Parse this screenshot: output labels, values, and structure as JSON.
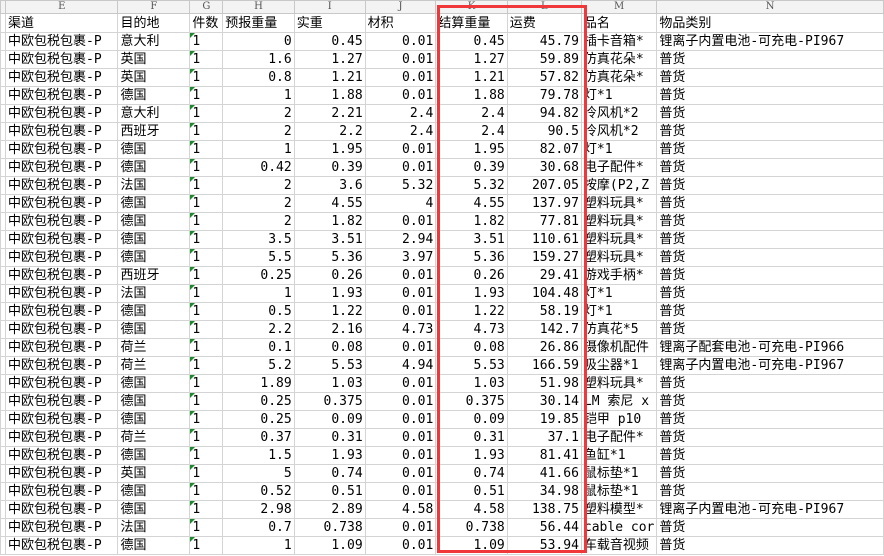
{
  "column_letters": [
    "",
    "E",
    "F",
    "G",
    "H",
    "I",
    "J",
    "K",
    "L",
    "M",
    "N"
  ],
  "headers": [
    "",
    "渠道",
    "目的地",
    "件数",
    "预报重量",
    "实重",
    "材积",
    "结算重量",
    "运费",
    "品名",
    "物品类别"
  ],
  "highlight_color": "#f0383b",
  "rows": [
    [
      "中欧包税包裹-P",
      "意大利",
      "1",
      "0",
      "0.45",
      "0.01",
      "0.45",
      "45.79",
      "插卡音箱*",
      "锂离子内置电池-可充电-PI967"
    ],
    [
      "中欧包税包裹-P",
      "英国",
      "1",
      "1.6",
      "1.27",
      "0.01",
      "1.27",
      "59.89",
      "仿真花朵*",
      "普货"
    ],
    [
      "中欧包税包裹-P",
      "英国",
      "1",
      "0.8",
      "1.21",
      "0.01",
      "1.21",
      "57.82",
      "仿真花朵*",
      "普货"
    ],
    [
      "中欧包税包裹-P",
      "德国",
      "1",
      "1",
      "1.88",
      "0.01",
      "1.88",
      "79.78",
      "灯*1",
      "普货"
    ],
    [
      "中欧包税包裹-P",
      "意大利",
      "1",
      "2",
      "2.21",
      "2.4",
      "2.4",
      "94.82",
      "冷风机*2",
      "普货"
    ],
    [
      "中欧包税包裹-P",
      "西班牙",
      "1",
      "2",
      "2.2",
      "2.4",
      "2.4",
      "90.5",
      "冷风机*2",
      "普货"
    ],
    [
      "中欧包税包裹-P",
      "德国",
      "1",
      "1",
      "1.95",
      "0.01",
      "1.95",
      "82.07",
      "灯*1",
      "普货"
    ],
    [
      "中欧包税包裹-P",
      "德国",
      "1",
      "0.42",
      "0.39",
      "0.01",
      "0.39",
      "30.68",
      "电子配件*",
      "普货"
    ],
    [
      "中欧包税包裹-P",
      "法国",
      "1",
      "2",
      "3.6",
      "5.32",
      "5.32",
      "207.05",
      "按摩(P2,Z",
      "普货"
    ],
    [
      "中欧包税包裹-P",
      "德国",
      "1",
      "2",
      "4.55",
      "4",
      "4.55",
      "137.97",
      "塑料玩具*",
      "普货"
    ],
    [
      "中欧包税包裹-P",
      "德国",
      "1",
      "2",
      "1.82",
      "0.01",
      "1.82",
      "77.81",
      "塑料玩具*",
      "普货"
    ],
    [
      "中欧包税包裹-P",
      "德国",
      "1",
      "3.5",
      "3.51",
      "2.94",
      "3.51",
      "110.61",
      "塑料玩具*",
      "普货"
    ],
    [
      "中欧包税包裹-P",
      "德国",
      "1",
      "5.5",
      "5.36",
      "3.97",
      "5.36",
      "159.27",
      "塑料玩具*",
      "普货"
    ],
    [
      "中欧包税包裹-P",
      "西班牙",
      "1",
      "0.25",
      "0.26",
      "0.01",
      "0.26",
      "29.41",
      "游戏手柄*",
      "普货"
    ],
    [
      "中欧包税包裹-P",
      "法国",
      "1",
      "1",
      "1.93",
      "0.01",
      "1.93",
      "104.48",
      "灯*1",
      "普货"
    ],
    [
      "中欧包税包裹-P",
      "德国",
      "1",
      "0.5",
      "1.22",
      "0.01",
      "1.22",
      "58.19",
      "灯*1",
      "普货"
    ],
    [
      "中欧包税包裹-P",
      "德国",
      "1",
      "2.2",
      "2.16",
      "4.73",
      "4.73",
      "142.7",
      "仿真花*5",
      "普货"
    ],
    [
      "中欧包税包裹-P",
      "荷兰",
      "1",
      "0.1",
      "0.08",
      "0.01",
      "0.08",
      "26.86",
      "摄像机配件",
      "锂离子配套电池-可充电-PI966"
    ],
    [
      "中欧包税包裹-P",
      "荷兰",
      "1",
      "5.2",
      "5.53",
      "4.94",
      "5.53",
      "166.59",
      "吸尘器*1",
      "锂离子内置电池-可充电-PI967"
    ],
    [
      "中欧包税包裹-P",
      "德国",
      "1",
      "1.89",
      "1.03",
      "0.01",
      "1.03",
      "51.98",
      "塑料玩具*",
      "普货"
    ],
    [
      "中欧包税包裹-P",
      "德国",
      "1",
      "0.25",
      "0.375",
      "0.01",
      "0.375",
      "30.14",
      "LM 索尼 x",
      "普货"
    ],
    [
      "中欧包税包裹-P",
      "德国",
      "1",
      "0.25",
      "0.09",
      "0.01",
      "0.09",
      "19.85",
      "铠甲 p10",
      "普货"
    ],
    [
      "中欧包税包裹-P",
      "荷兰",
      "1",
      "0.37",
      "0.31",
      "0.01",
      "0.31",
      "37.1",
      "电子配件*",
      "普货"
    ],
    [
      "中欧包税包裹-P",
      "德国",
      "1",
      "1.5",
      "1.93",
      "0.01",
      "1.93",
      "81.41",
      "鱼缸*1",
      "普货"
    ],
    [
      "中欧包税包裹-P",
      "英国",
      "1",
      "5",
      "0.74",
      "0.01",
      "0.74",
      "41.66",
      "鼠标垫*1",
      "普货"
    ],
    [
      "中欧包税包裹-P",
      "德国",
      "1",
      "0.52",
      "0.51",
      "0.01",
      "0.51",
      "34.98",
      "鼠标垫*1",
      "普货"
    ],
    [
      "中欧包税包裹-P",
      "德国",
      "1",
      "2.98",
      "2.89",
      "4.58",
      "4.58",
      "138.75",
      "塑料模型*",
      "锂离子内置电池-可充电-PI967"
    ],
    [
      "中欧包税包裹-P",
      "法国",
      "1",
      "0.7",
      "0.738",
      "0.01",
      "0.738",
      "56.44",
      "cable cor",
      "普货"
    ],
    [
      "中欧包税包裹-P",
      "德国",
      "1",
      "1",
      "1.09",
      "0.01",
      "1.09",
      "53.94",
      "车载音视频",
      "普货"
    ]
  ]
}
